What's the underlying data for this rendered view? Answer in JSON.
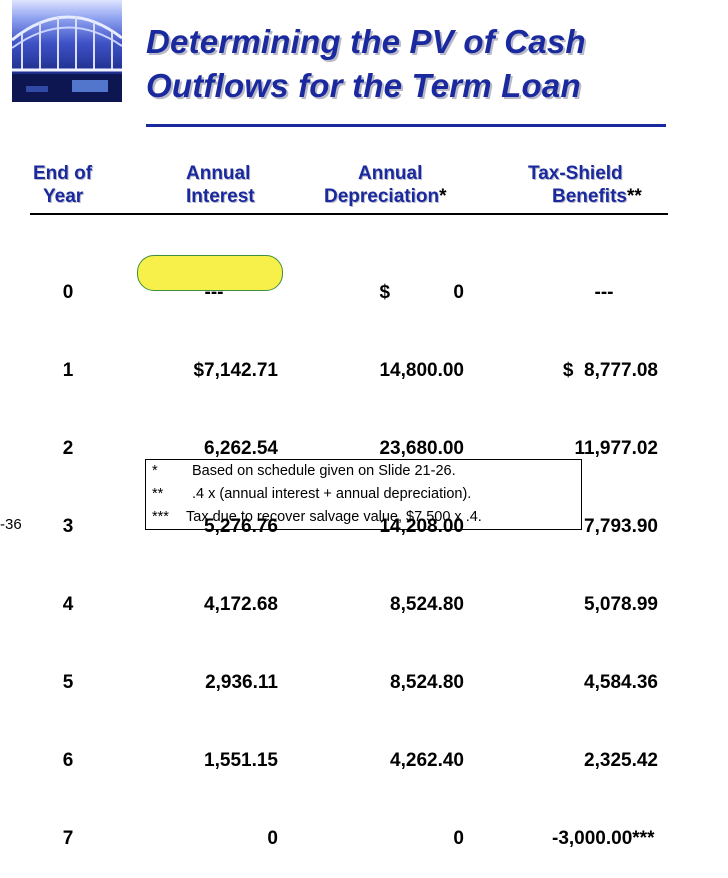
{
  "title": {
    "line1": "Determining the PV of Cash",
    "line2": "Outflows for the Term Loan"
  },
  "headers": {
    "col1": [
      "End of",
      "Year"
    ],
    "col2": [
      "Annual",
      "Interest"
    ],
    "col3_line1": "Annual",
    "col3_line2": "Depreciation",
    "col3_mark": "*",
    "col4_line1": "Tax-Shield",
    "col4_line2": "Benefits",
    "col4_mark": "**"
  },
  "rows": [
    {
      "year": "0",
      "interest": "---",
      "depreciation": "$            0",
      "shield": "---"
    },
    {
      "year": "1",
      "interest": "$7,142.71",
      "depreciation": "14,800.00",
      "shield": "$  8,777.08"
    },
    {
      "year": "2",
      "interest": "6,262.54",
      "depreciation": "23,680.00",
      "shield": "11,977.02"
    },
    {
      "year": "3",
      "interest": "5,276.76",
      "depreciation": "14,208.00",
      "shield": "7,793.90"
    },
    {
      "year": "4",
      "interest": "4,172.68",
      "depreciation": "8,524.80",
      "shield": "5,078.99"
    },
    {
      "year": "5",
      "interest": "2,936.11",
      "depreciation": "8,524.80",
      "shield": "4,584.36"
    },
    {
      "year": "6",
      "interest": "1,551.15",
      "depreciation": "4,262.40",
      "shield": "2,325.42"
    },
    {
      "year": "7",
      "interest": "0",
      "depreciation": "0",
      "shield": "-3,000.00***"
    }
  ],
  "highlight_color": "#f7f04a",
  "title_color": "#1a2a9e",
  "footnotes": [
    {
      "mark": "*",
      "text": "Based on schedule given on Slide 21-26."
    },
    {
      "mark": "**",
      "text": ".4 x (annual interest + annual depreciation)."
    },
    {
      "mark": "***",
      "text": "Tax due to recover salvage value, $7,500 x .4."
    }
  ],
  "page_label": "-36"
}
